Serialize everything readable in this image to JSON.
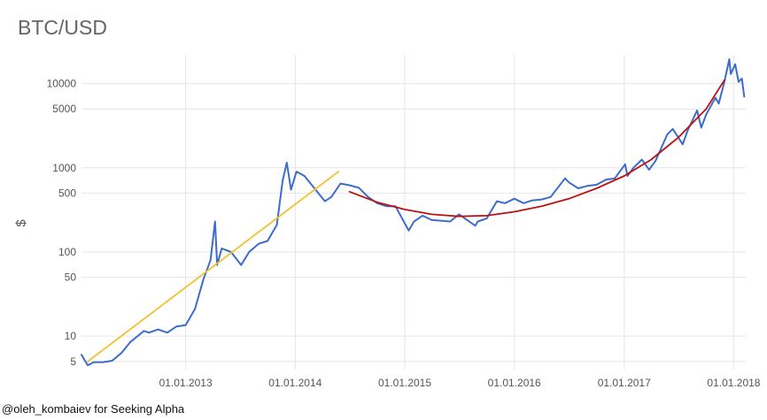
{
  "chart_data": {
    "type": "line",
    "title": "BTC/USD",
    "ylabel": "$",
    "xlabel": "",
    "yscale": "log",
    "ylim": [
      4,
      22000
    ],
    "xlim": [
      "2012-01-20",
      "2018-02-10"
    ],
    "y_ticks": [
      5,
      10,
      50,
      100,
      500,
      1000,
      5000,
      10000
    ],
    "y_tick_labels": [
      "5",
      "10",
      "50",
      "100",
      "500",
      "1000",
      "5000",
      "10000"
    ],
    "x_tick_labels": [
      "01.01.2013",
      "01.01.2014",
      "01.01.2015",
      "01.01.2016",
      "01.01.2017",
      "01.01.2018"
    ],
    "x_ticks": [
      "2013-01-01",
      "2014-01-01",
      "2015-01-01",
      "2016-01-01",
      "2017-01-01",
      "2018-01-01"
    ],
    "grid": true,
    "series": [
      {
        "color": "#3c6ccc",
        "points": [
          [
            "2012-01-20",
            6.0
          ],
          [
            "2012-02-10",
            4.5
          ],
          [
            "2012-03-01",
            4.9
          ],
          [
            "2012-04-01",
            4.9
          ],
          [
            "2012-05-01",
            5.1
          ],
          [
            "2012-06-01",
            6.3
          ],
          [
            "2012-07-01",
            8.5
          ],
          [
            "2012-08-15",
            11.5
          ],
          [
            "2012-09-01",
            11.0
          ],
          [
            "2012-10-01",
            12.0
          ],
          [
            "2012-11-01",
            11.0
          ],
          [
            "2012-12-01",
            13.0
          ],
          [
            "2013-01-01",
            13.5
          ],
          [
            "2013-02-01",
            21.0
          ],
          [
            "2013-03-01",
            47.0
          ],
          [
            "2013-03-25",
            80.0
          ],
          [
            "2013-04-09",
            230.0
          ],
          [
            "2013-04-16",
            70.0
          ],
          [
            "2013-05-01",
            110.0
          ],
          [
            "2013-06-01",
            100.0
          ],
          [
            "2013-07-05",
            70.0
          ],
          [
            "2013-08-01",
            100.0
          ],
          [
            "2013-09-01",
            125.0
          ],
          [
            "2013-10-01",
            135.0
          ],
          [
            "2013-11-01",
            210.0
          ],
          [
            "2013-11-20",
            700.0
          ],
          [
            "2013-12-04",
            1150.0
          ],
          [
            "2013-12-18",
            550.0
          ],
          [
            "2014-01-05",
            900.0
          ],
          [
            "2014-02-01",
            800.0
          ],
          [
            "2014-03-01",
            600.0
          ],
          [
            "2014-04-10",
            400.0
          ],
          [
            "2014-05-01",
            450.0
          ],
          [
            "2014-06-01",
            650.0
          ],
          [
            "2014-07-01",
            620.0
          ],
          [
            "2014-08-01",
            580.0
          ],
          [
            "2014-09-01",
            450.0
          ],
          [
            "2014-10-01",
            380.0
          ],
          [
            "2014-11-01",
            350.0
          ],
          [
            "2014-12-01",
            350.0
          ],
          [
            "2015-01-14",
            180.0
          ],
          [
            "2015-02-01",
            230.0
          ],
          [
            "2015-03-01",
            270.0
          ],
          [
            "2015-04-01",
            240.0
          ],
          [
            "2015-05-01",
            235.0
          ],
          [
            "2015-06-01",
            230.0
          ],
          [
            "2015-07-01",
            280.0
          ],
          [
            "2015-08-24",
            205.0
          ],
          [
            "2015-09-01",
            230.0
          ],
          [
            "2015-10-01",
            250.0
          ],
          [
            "2015-11-04",
            400.0
          ],
          [
            "2015-12-01",
            380.0
          ],
          [
            "2016-01-01",
            430.0
          ],
          [
            "2016-02-01",
            380.0
          ],
          [
            "2016-03-01",
            410.0
          ],
          [
            "2016-04-01",
            420.0
          ],
          [
            "2016-05-01",
            450.0
          ],
          [
            "2016-06-18",
            750.0
          ],
          [
            "2016-07-01",
            670.0
          ],
          [
            "2016-08-01",
            570.0
          ],
          [
            "2016-09-01",
            610.0
          ],
          [
            "2016-10-01",
            630.0
          ],
          [
            "2016-11-01",
            720.0
          ],
          [
            "2016-12-01",
            750.0
          ],
          [
            "2017-01-04",
            1100.0
          ],
          [
            "2017-01-12",
            800.0
          ],
          [
            "2017-02-01",
            1000.0
          ],
          [
            "2017-03-01",
            1250.0
          ],
          [
            "2017-03-25",
            950.0
          ],
          [
            "2017-04-15",
            1200.0
          ],
          [
            "2017-05-25",
            2500.0
          ],
          [
            "2017-06-12",
            2900.0
          ],
          [
            "2017-07-15",
            1900.0
          ],
          [
            "2017-08-01",
            2800.0
          ],
          [
            "2017-09-01",
            4800.0
          ],
          [
            "2017-09-15",
            3000.0
          ],
          [
            "2017-10-01",
            4300.0
          ],
          [
            "2017-11-01",
            6800.0
          ],
          [
            "2017-11-12",
            5800.0
          ],
          [
            "2017-12-01",
            10500.0
          ],
          [
            "2017-12-17",
            19500.0
          ],
          [
            "2017-12-22",
            13000.0
          ],
          [
            "2018-01-06",
            17000.0
          ],
          [
            "2018-01-17",
            10500.0
          ],
          [
            "2018-01-28",
            11500.0
          ],
          [
            "2018-02-05",
            7000.0
          ]
        ]
      },
      {
        "color": "#f2c12e",
        "points": [
          [
            "2012-02-10",
            5.0
          ],
          [
            "2014-05-25",
            900.0
          ]
        ]
      },
      {
        "color": "#bb1111",
        "points": [
          [
            "2014-07-01",
            520.0
          ],
          [
            "2014-10-01",
            390.0
          ],
          [
            "2015-01-01",
            320.0
          ],
          [
            "2015-04-01",
            280.0
          ],
          [
            "2015-07-01",
            265.0
          ],
          [
            "2015-10-01",
            270.0
          ],
          [
            "2016-01-01",
            300.0
          ],
          [
            "2016-04-01",
            350.0
          ],
          [
            "2016-07-01",
            430.0
          ],
          [
            "2016-10-01",
            570.0
          ],
          [
            "2017-01-01",
            800.0
          ],
          [
            "2017-04-01",
            1250.0
          ],
          [
            "2017-07-01",
            2300.0
          ],
          [
            "2017-10-01",
            5000.0
          ],
          [
            "2017-12-01",
            11000.0
          ]
        ]
      }
    ]
  },
  "credit": "@oleh_kombaiev for Seeking Alpha"
}
